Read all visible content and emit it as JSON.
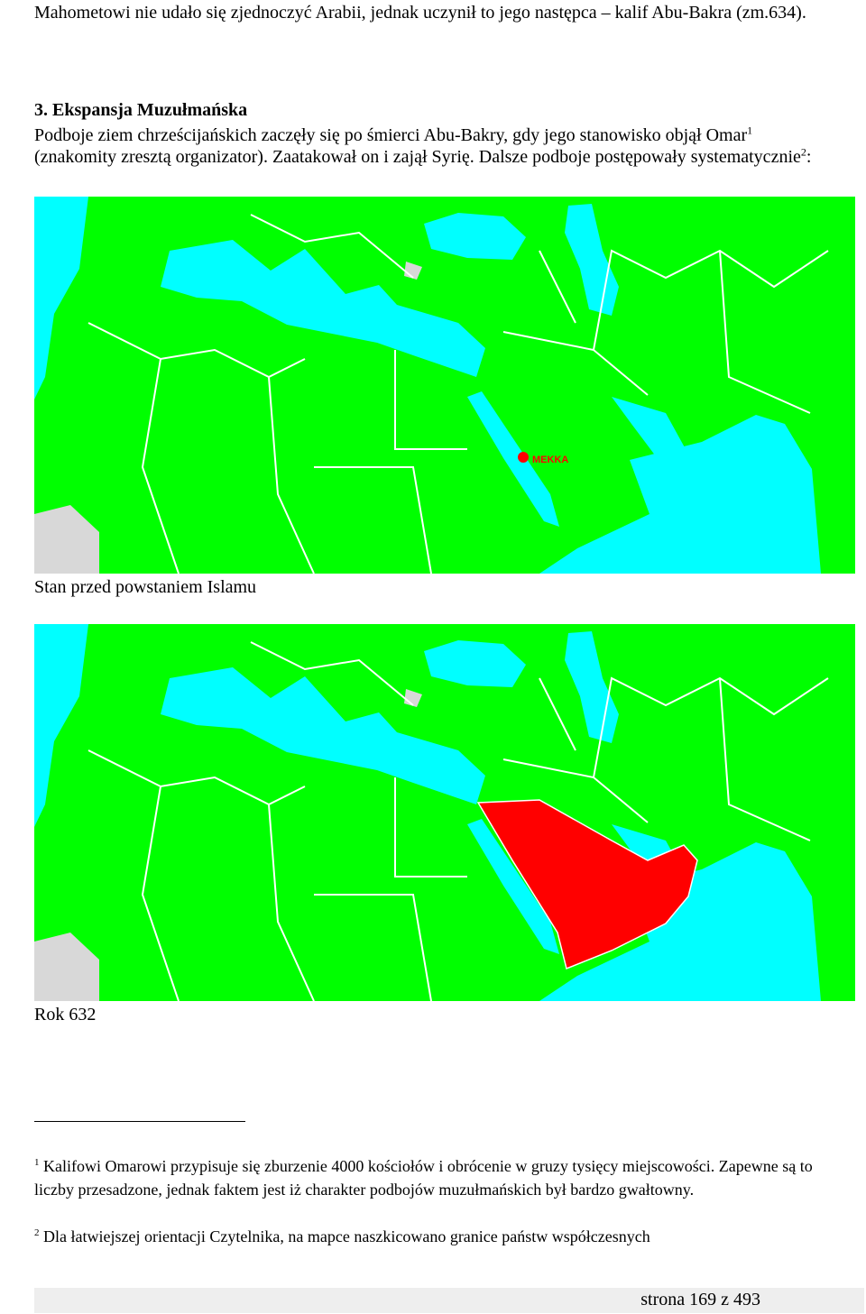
{
  "intro": "Mahometowi nie udało się zjednoczyć Arabii, jednak uczynił to jego następca – kalif Abu-Bakra (zm.634).",
  "section": {
    "heading": "3. Ekspansja Muzułmańska",
    "paragraph": {
      "text1": "Podboje ziem chrześcijańskich zaczęły się po śmierci Abu-Bakry, gdy jego stanowisko objął Omar",
      "note1": "1",
      "text2": " (znakomity zresztą organizator). Zaatakował on i zajął Syrię. Dalsze podboje postępowały systematycznie",
      "note2": "2",
      "text3": ":"
    }
  },
  "maps": [
    {
      "label": "MEKKA",
      "caption": "Stan przed powstaniem Islamu"
    },
    {
      "caption": "Rok 632"
    }
  ],
  "footnotes": [
    {
      "mark": "1",
      "text": "Kalifowi Omarowi przypisuje się zburzenie 4000 kościołów i obrócenie w gruzy tysięcy miejscowości. Zapewne są to liczby przesadzone, jednak faktem jest iż charakter podbojów muzułmańskich był bardzo gwałtowny."
    },
    {
      "mark": "2",
      "text": "Dla łatwiejszej orientacji Czytelnika, na mapce naszkicowano granice państw współczesnych"
    }
  ],
  "footer": "strona 169 z 493"
}
